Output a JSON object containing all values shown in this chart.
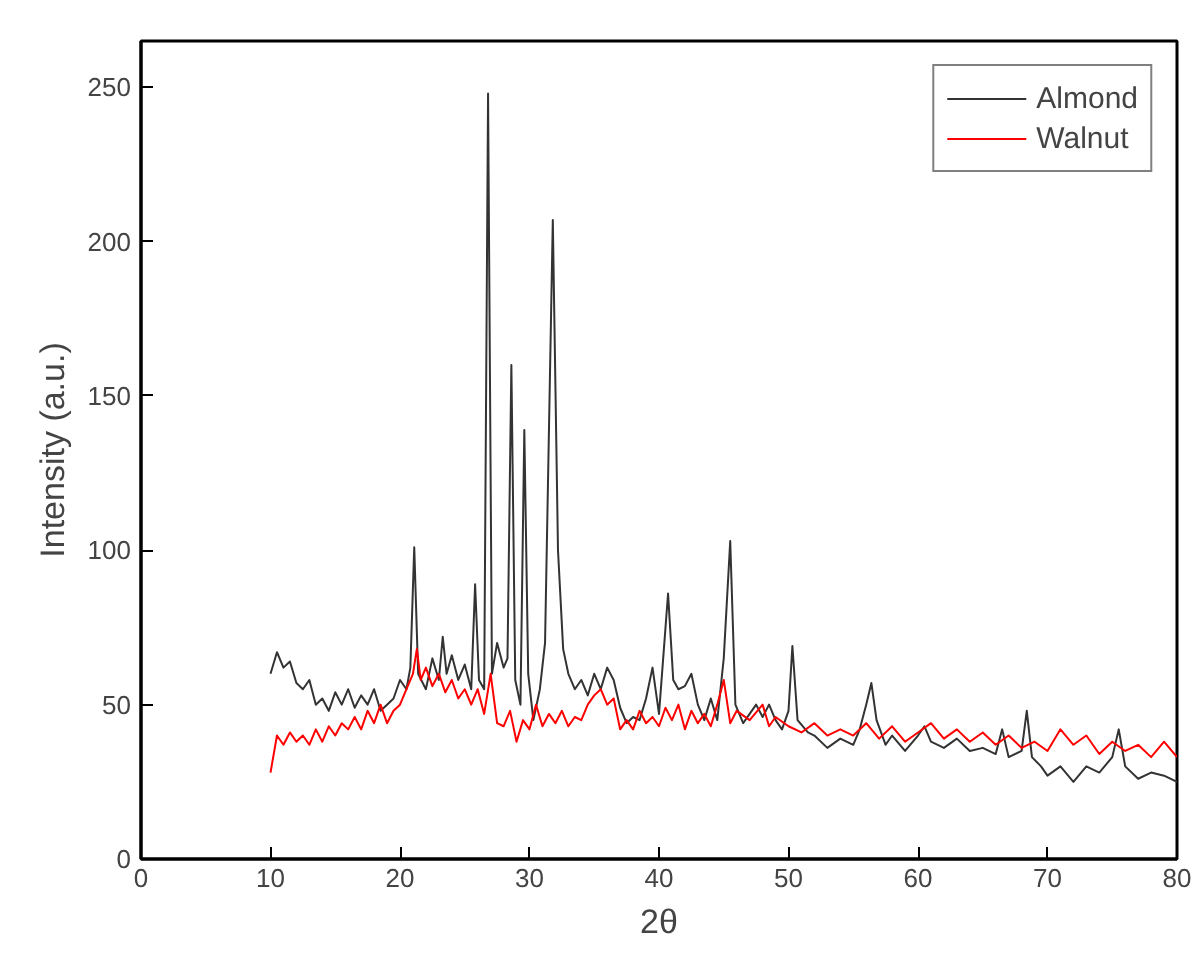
{
  "chart_data": {
    "type": "line",
    "xlabel": "2θ",
    "ylabel": "Intensity (a.u.)",
    "xlim": [
      0,
      80
    ],
    "ylim": [
      0,
      265
    ],
    "xticks": [
      0,
      10,
      20,
      30,
      40,
      50,
      60,
      70,
      80
    ],
    "yticks": [
      0,
      50,
      100,
      150,
      200,
      250
    ],
    "grid": false,
    "legend": "top right",
    "marker": "none",
    "line_style": "solid",
    "series": [
      {
        "name": "Almond",
        "color": "#333333",
        "x": [
          10,
          10.5,
          11,
          11.5,
          12,
          12.5,
          13,
          13.5,
          14,
          14.5,
          15,
          15.5,
          16,
          16.5,
          17,
          17.5,
          18,
          18.5,
          19,
          19.5,
          20,
          20.5,
          20.8,
          21.1,
          21.4,
          22,
          22.5,
          23,
          23.3,
          23.6,
          24,
          24.5,
          25,
          25.5,
          25.8,
          26.1,
          26.5,
          26.8,
          27.1,
          27.5,
          28,
          28.3,
          28.6,
          28.9,
          29.3,
          29.6,
          29.9,
          30.3,
          30.8,
          31.2,
          31.8,
          32.2,
          32.6,
          33,
          33.5,
          34,
          34.5,
          35,
          35.5,
          36,
          36.5,
          37,
          37.5,
          38,
          38.5,
          39,
          39.5,
          40,
          40.7,
          41.1,
          41.5,
          42,
          42.5,
          43,
          43.5,
          44,
          44.5,
          45,
          45.5,
          45.9,
          46.5,
          47,
          47.5,
          48,
          48.5,
          49,
          49.5,
          50,
          50.3,
          50.7,
          51.5,
          52,
          53,
          54,
          55,
          55.5,
          56,
          56.4,
          56.8,
          57.5,
          58,
          59,
          60,
          60.5,
          61,
          62,
          63,
          64,
          65,
          66,
          66.5,
          67,
          68,
          68.4,
          68.8,
          69.5,
          70,
          71,
          72,
          73,
          74,
          75,
          75.5,
          76,
          77,
          78,
          79,
          80
        ],
        "values": [
          60,
          67,
          62,
          64,
          57,
          55,
          58,
          50,
          52,
          48,
          54,
          50,
          55,
          49,
          53,
          50,
          55,
          48,
          50,
          52,
          58,
          55,
          62,
          101,
          60,
          55,
          65,
          58,
          72,
          60,
          66,
          58,
          63,
          55,
          89,
          58,
          55,
          248,
          60,
          70,
          62,
          65,
          160,
          58,
          50,
          139,
          60,
          45,
          55,
          70,
          207,
          100,
          68,
          60,
          55,
          58,
          53,
          60,
          55,
          62,
          58,
          49,
          44,
          46,
          45,
          52,
          62,
          47,
          86,
          58,
          55,
          56,
          60,
          50,
          45,
          52,
          45,
          65,
          103,
          50,
          44,
          47,
          50,
          46,
          50,
          45,
          42,
          48,
          69,
          45,
          41,
          40,
          36,
          39,
          37,
          42,
          50,
          57,
          45,
          37,
          40,
          35,
          40,
          43,
          38,
          36,
          39,
          35,
          36,
          34,
          42,
          33,
          35,
          48,
          33,
          30,
          27,
          30,
          25,
          30,
          28,
          33,
          42,
          30,
          26,
          28,
          27,
          25
        ]
      },
      {
        "name": "Walnut",
        "color": "#ff0000",
        "x": [
          10,
          10.5,
          11,
          11.5,
          12,
          12.5,
          13,
          13.5,
          14,
          14.5,
          15,
          15.5,
          16,
          16.5,
          17,
          17.5,
          18,
          18.5,
          19,
          19.5,
          20,
          20.5,
          21,
          21.3,
          21.6,
          22,
          22.5,
          23,
          23.5,
          24,
          24.5,
          25,
          25.5,
          26,
          26.5,
          27,
          27.5,
          28,
          28.5,
          29,
          29.5,
          30,
          30.5,
          31,
          31.5,
          32,
          32.5,
          33,
          33.5,
          34,
          34.5,
          35,
          35.5,
          36,
          36.5,
          37,
          37.5,
          38,
          38.5,
          39,
          39.5,
          40,
          40.5,
          41,
          41.5,
          42,
          42.5,
          43,
          43.5,
          44,
          44.5,
          45,
          45.5,
          46,
          47,
          48,
          48.5,
          49,
          50,
          51,
          52,
          53,
          54,
          55,
          56,
          57,
          58,
          59,
          60,
          61,
          62,
          63,
          64,
          65,
          66,
          67,
          68,
          69,
          70,
          71,
          72,
          73,
          74,
          75,
          76,
          77,
          78,
          79,
          80
        ],
        "values": [
          28,
          40,
          37,
          41,
          38,
          40,
          37,
          42,
          38,
          43,
          40,
          44,
          42,
          46,
          42,
          48,
          44,
          50,
          44,
          48,
          50,
          55,
          60,
          68,
          58,
          62,
          56,
          60,
          54,
          58,
          52,
          55,
          50,
          55,
          47,
          60,
          44,
          43,
          48,
          38,
          45,
          42,
          50,
          43,
          47,
          44,
          48,
          43,
          46,
          45,
          50,
          53,
          55,
          50,
          52,
          42,
          45,
          42,
          48,
          44,
          46,
          43,
          49,
          45,
          50,
          42,
          48,
          44,
          47,
          43,
          50,
          58,
          44,
          48,
          45,
          50,
          43,
          46,
          43,
          41,
          44,
          40,
          42,
          40,
          44,
          39,
          43,
          38,
          41,
          44,
          39,
          42,
          38,
          41,
          37,
          40,
          36,
          38,
          35,
          42,
          37,
          40,
          34,
          38,
          35,
          37,
          33,
          38,
          33
        ]
      }
    ]
  }
}
